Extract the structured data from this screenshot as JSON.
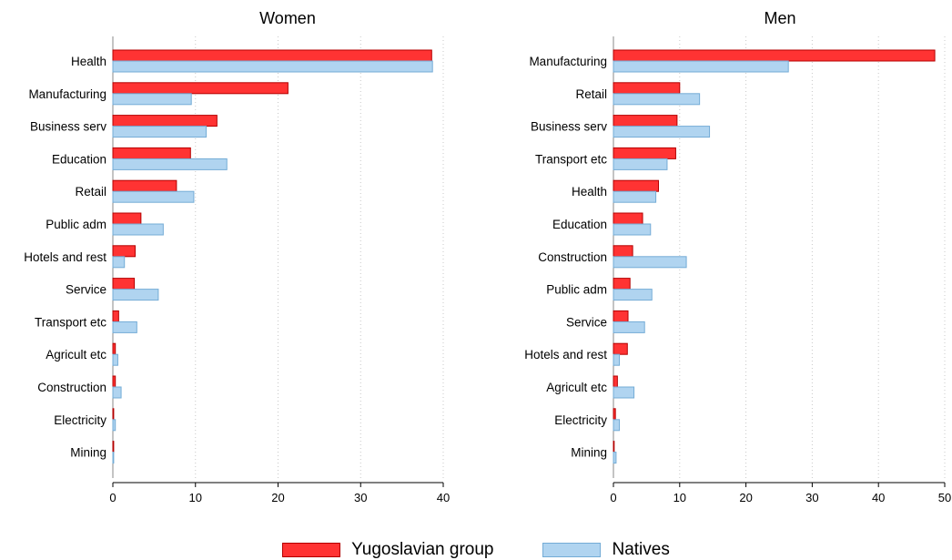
{
  "chart_data": [
    {
      "type": "bar",
      "orientation": "horizontal",
      "title": "Women",
      "categories": [
        "Health",
        "Manufacturing",
        "Business serv",
        "Education",
        "Retail",
        "Public adm",
        "Hotels and rest",
        "Service",
        "Transport etc",
        "Agricult etc",
        "Construction",
        "Electricity",
        "Mining"
      ],
      "series": [
        {
          "name": "Yugoslavian group",
          "values": [
            38.6,
            21.2,
            12.6,
            9.4,
            7.7,
            3.4,
            2.7,
            2.6,
            0.7,
            0.3,
            0.3,
            0.1,
            0.1
          ]
        },
        {
          "name": "Natives",
          "values": [
            38.7,
            9.5,
            11.3,
            13.8,
            9.8,
            6.1,
            1.4,
            5.5,
            2.9,
            0.6,
            1.0,
            0.3,
            0.1
          ]
        }
      ],
      "xlim": [
        0,
        40
      ],
      "xticks": [
        0,
        10,
        20,
        30,
        40
      ],
      "grid": true
    },
    {
      "type": "bar",
      "orientation": "horizontal",
      "title": "Men",
      "categories": [
        "Manufacturing",
        "Retail",
        "Business serv",
        "Transport etc",
        "Health",
        "Education",
        "Construction",
        "Public adm",
        "Service",
        "Hotels and rest",
        "Agricult etc",
        "Electricity",
        "Mining"
      ],
      "series": [
        {
          "name": "Yugoslavian group",
          "values": [
            48.5,
            10.0,
            9.6,
            9.4,
            6.8,
            4.4,
            2.9,
            2.5,
            2.2,
            2.1,
            0.6,
            0.3,
            0.1
          ]
        },
        {
          "name": "Natives",
          "values": [
            26.4,
            13.0,
            14.5,
            8.1,
            6.4,
            5.6,
            11.0,
            5.8,
            4.7,
            0.9,
            3.1,
            0.9,
            0.4
          ]
        }
      ],
      "xlim": [
        0,
        50
      ],
      "xticks": [
        0,
        10,
        20,
        30,
        40,
        50
      ],
      "grid": true
    }
  ],
  "legend": {
    "placement": "bottom",
    "items": [
      {
        "label": "Yugoslavian group",
        "fill": "#ff3333",
        "stroke": "#b40000"
      },
      {
        "label": "Natives",
        "fill": "#b0d4f0",
        "stroke": "#74acd6"
      }
    ]
  }
}
